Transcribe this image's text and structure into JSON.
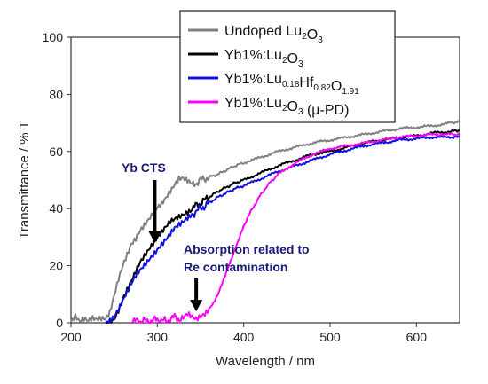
{
  "chart_data": {
    "type": "line",
    "xlabel": "Wavelength / nm",
    "ylabel": "Transmittance / % T",
    "xlim": [
      200,
      650
    ],
    "ylim": [
      0,
      100
    ],
    "xticks": [
      200,
      300,
      400,
      500,
      600
    ],
    "yticks": [
      0,
      20,
      40,
      60,
      80,
      100
    ],
    "legend_position": "top-right",
    "series": [
      {
        "name": "Undoped Lu2O3",
        "legend": {
          "pre": "Undoped Lu",
          "sub1": "2",
          "mid1": "O",
          "sub2": "3",
          "mid2": "",
          "sub3": "",
          "post": ""
        },
        "color": "#808080",
        "points": [
          [
            200,
            0.8
          ],
          [
            205,
            2.5
          ],
          [
            210,
            0.5
          ],
          [
            215,
            1.2
          ],
          [
            220,
            0.3
          ],
          [
            225,
            1.0
          ],
          [
            230,
            0.4
          ],
          [
            235,
            0.8
          ],
          [
            240,
            0.5
          ],
          [
            245,
            3
          ],
          [
            250,
            9
          ],
          [
            255,
            15
          ],
          [
            260,
            20
          ],
          [
            265,
            24
          ],
          [
            270,
            28
          ],
          [
            275,
            30
          ],
          [
            280,
            33
          ],
          [
            285,
            35
          ],
          [
            290,
            37
          ],
          [
            295,
            39
          ],
          [
            300,
            41
          ],
          [
            305,
            42
          ],
          [
            310,
            44
          ],
          [
            315,
            46
          ],
          [
            320,
            48
          ],
          [
            325,
            50
          ],
          [
            330,
            50
          ],
          [
            335,
            49
          ],
          [
            340,
            48
          ],
          [
            350,
            50
          ],
          [
            360,
            51
          ],
          [
            370,
            52
          ],
          [
            380,
            53.5
          ],
          [
            390,
            55
          ],
          [
            400,
            56
          ],
          [
            420,
            58
          ],
          [
            440,
            60
          ],
          [
            460,
            61.5
          ],
          [
            480,
            63
          ],
          [
            500,
            64
          ],
          [
            520,
            65
          ],
          [
            540,
            66
          ],
          [
            560,
            67
          ],
          [
            580,
            68
          ],
          [
            600,
            68.5
          ],
          [
            620,
            69
          ],
          [
            640,
            70
          ],
          [
            650,
            70.5
          ]
        ]
      },
      {
        "name": "Yb1%:Lu2O3",
        "legend": {
          "pre": "Yb1%:Lu",
          "sub1": "2",
          "mid1": "O",
          "sub2": "3",
          "mid2": "",
          "sub3": "",
          "post": ""
        },
        "color": "#000000",
        "points": [
          [
            240,
            0
          ],
          [
            245,
            0.5
          ],
          [
            250,
            2
          ],
          [
            255,
            5
          ],
          [
            260,
            9
          ],
          [
            265,
            12
          ],
          [
            270,
            15
          ],
          [
            275,
            18
          ],
          [
            280,
            21
          ],
          [
            285,
            23
          ],
          [
            290,
            25
          ],
          [
            295,
            27
          ],
          [
            300,
            29
          ],
          [
            305,
            31
          ],
          [
            310,
            33
          ],
          [
            315,
            35
          ],
          [
            320,
            36
          ],
          [
            325,
            37
          ],
          [
            330,
            38
          ],
          [
            335,
            39
          ],
          [
            340,
            40
          ],
          [
            350,
            42
          ],
          [
            360,
            44
          ],
          [
            370,
            46
          ],
          [
            380,
            47.5
          ],
          [
            390,
            49
          ],
          [
            400,
            50
          ],
          [
            420,
            52.5
          ],
          [
            440,
            55
          ],
          [
            460,
            57
          ],
          [
            480,
            59
          ],
          [
            500,
            60
          ],
          [
            520,
            61.5
          ],
          [
            540,
            63
          ],
          [
            560,
            64
          ],
          [
            580,
            65
          ],
          [
            600,
            65.5
          ],
          [
            620,
            66.5
          ],
          [
            640,
            67
          ],
          [
            650,
            67.5
          ]
        ]
      },
      {
        "name": "Yb1%:Lu0.18Hf0.82O1.91",
        "legend": {
          "pre": "Yb1%:Lu",
          "sub1": "0.18",
          "mid1": "Hf",
          "sub2": "0.82",
          "mid2": "O",
          "sub3": "1.91",
          "post": ""
        },
        "color": "#1010e0",
        "points": [
          [
            240,
            0
          ],
          [
            245,
            0.4
          ],
          [
            250,
            1.5
          ],
          [
            255,
            4
          ],
          [
            260,
            7
          ],
          [
            265,
            10
          ],
          [
            270,
            13
          ],
          [
            275,
            16
          ],
          [
            280,
            18
          ],
          [
            285,
            20
          ],
          [
            290,
            22
          ],
          [
            295,
            24
          ],
          [
            300,
            26
          ],
          [
            305,
            28
          ],
          [
            310,
            30
          ],
          [
            315,
            32
          ],
          [
            320,
            34
          ],
          [
            325,
            35
          ],
          [
            330,
            36
          ],
          [
            335,
            37
          ],
          [
            340,
            38
          ],
          [
            350,
            40
          ],
          [
            360,
            42
          ],
          [
            370,
            44
          ],
          [
            380,
            45.5
          ],
          [
            390,
            47
          ],
          [
            400,
            48
          ],
          [
            420,
            50.5
          ],
          [
            440,
            53
          ],
          [
            460,
            55
          ],
          [
            480,
            57
          ],
          [
            500,
            59
          ],
          [
            520,
            60.5
          ],
          [
            540,
            62
          ],
          [
            560,
            63
          ],
          [
            580,
            64
          ],
          [
            600,
            64.5
          ],
          [
            620,
            65
          ],
          [
            640,
            65
          ],
          [
            650,
            65
          ]
        ]
      },
      {
        "name": "Yb1%:Lu2O3 (µ-PD)",
        "legend": {
          "pre": "Yb1%:Lu",
          "sub1": "2",
          "mid1": "O",
          "sub2": "3",
          "mid2": "",
          "sub3": "",
          "post": " (µ-PD)"
        },
        "color": "#ff00ff",
        "points": [
          [
            270,
            0.3
          ],
          [
            280,
            0.8
          ],
          [
            290,
            0.4
          ],
          [
            300,
            1.2
          ],
          [
            310,
            0.5
          ],
          [
            320,
            2.0
          ],
          [
            330,
            1.0
          ],
          [
            335,
            2.5
          ],
          [
            340,
            1.5
          ],
          [
            345,
            0.8
          ],
          [
            350,
            2
          ],
          [
            355,
            3
          ],
          [
            360,
            5
          ],
          [
            365,
            7
          ],
          [
            370,
            10
          ],
          [
            375,
            14
          ],
          [
            380,
            18
          ],
          [
            385,
            22
          ],
          [
            390,
            26
          ],
          [
            395,
            30
          ],
          [
            400,
            34
          ],
          [
            410,
            40
          ],
          [
            420,
            45
          ],
          [
            430,
            49
          ],
          [
            440,
            52
          ],
          [
            460,
            56
          ],
          [
            480,
            59
          ],
          [
            500,
            61
          ],
          [
            520,
            62
          ],
          [
            540,
            63
          ],
          [
            560,
            64
          ],
          [
            580,
            65
          ],
          [
            600,
            65.5
          ],
          [
            620,
            66
          ],
          [
            640,
            66
          ],
          [
            650,
            66
          ]
        ]
      }
    ],
    "annotations": [
      {
        "text": "Yb CTS",
        "arrow_x": 297,
        "arrow_to_y": 28
      },
      {
        "text_lines": [
          "Absorption related to",
          "Re contamination"
        ],
        "arrow_x": 345,
        "arrow_to_y": 4
      }
    ]
  }
}
